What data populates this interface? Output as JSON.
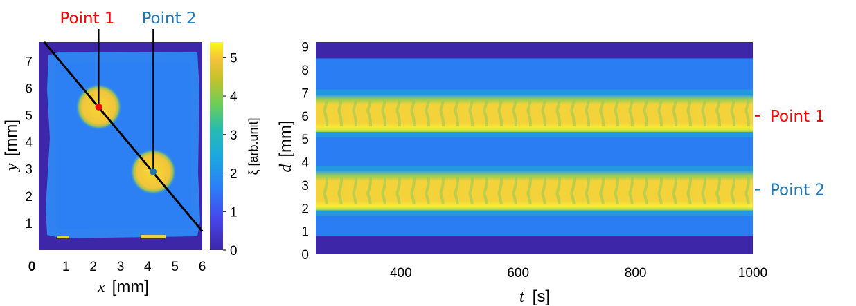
{
  "chart_data": [
    {
      "type": "heatmap",
      "title": "",
      "xlabel_var": "x",
      "xlabel_unit": "[mm]",
      "ylabel_var": "y",
      "ylabel_unit": "[mm]",
      "xlim": [
        0,
        6
      ],
      "ylim": [
        0,
        7.7
      ],
      "xticks": [
        "0",
        "1",
        "2",
        "3",
        "4",
        "5",
        "6"
      ],
      "yticks": [
        "1",
        "2",
        "3",
        "4",
        "5",
        "6",
        "7"
      ],
      "line": {
        "from": [
          0.2,
          7.7
        ],
        "to": [
          6.0,
          0.7
        ]
      },
      "points": [
        {
          "name": "Point 1",
          "x": 2.2,
          "y": 5.3,
          "color": "#ff0000"
        },
        {
          "name": "Point 2",
          "x": 4.2,
          "y": 2.9,
          "color": "#1f77b4"
        }
      ],
      "spots": [
        {
          "cx": 2.2,
          "cy": 5.3,
          "r": 0.8
        },
        {
          "cx": 4.2,
          "cy": 2.9,
          "r": 0.8
        }
      ],
      "colorbar": {
        "label": "ξ [arb.unit]",
        "range": [
          0,
          5.4
        ],
        "ticks": [
          "0",
          "1",
          "2",
          "3",
          "4",
          "5"
        ]
      }
    },
    {
      "type": "heatmap",
      "title": "",
      "xlabel_var": "t",
      "xlabel_unit": "[s]",
      "ylabel_var": "d",
      "ylabel_unit": "[mm]",
      "xlim": [
        255,
        1000
      ],
      "ylim": [
        0,
        9.2
      ],
      "xticks": [
        400,
        600,
        800,
        1000
      ],
      "yticks": [
        0,
        1,
        2,
        3,
        4,
        5,
        6,
        7,
        8,
        9
      ],
      "bands": [
        {
          "from": 5.3,
          "to": 6.9,
          "level": "high"
        },
        {
          "from": 1.9,
          "to": 3.6,
          "level": "high"
        }
      ],
      "data_range_d": [
        0.8,
        8.5
      ],
      "stripe_period_s": 22,
      "point_markers": [
        {
          "label": "Point 1",
          "d": 6.0,
          "color": "#ff0000"
        },
        {
          "label": "Point 2",
          "d": 2.8,
          "color": "#1f77b4"
        }
      ]
    }
  ]
}
